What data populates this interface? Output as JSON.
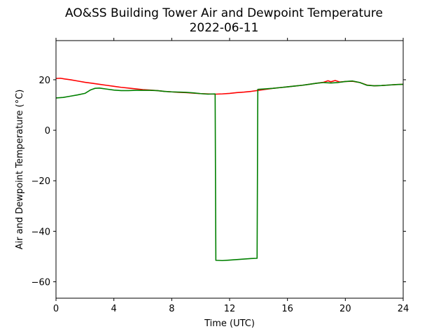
{
  "chart_data": {
    "type": "line",
    "title": "AO&SS Building Tower Air and Dewpoint Temperature",
    "subtitle": "2022-06-11",
    "xlabel": "Time (UTC)",
    "ylabel": "Air and Dewpoint Temperature (°C)",
    "xlim": [
      0,
      24
    ],
    "ylim": [
      -66.5,
      35.5
    ],
    "xticks": [
      0,
      4,
      8,
      12,
      16,
      20,
      24
    ],
    "yticks": [
      -60,
      -40,
      -20,
      0,
      20
    ],
    "grid": false,
    "series": [
      {
        "color": "#ff0000",
        "points": [
          [
            0,
            20.5
          ],
          [
            0.3,
            20.6
          ],
          [
            0.6,
            20.3
          ],
          [
            1,
            20.0
          ],
          [
            1.5,
            19.5
          ],
          [
            2,
            19.0
          ],
          [
            2.5,
            18.6
          ],
          [
            3,
            18.2
          ],
          [
            3.5,
            17.8
          ],
          [
            4,
            17.4
          ],
          [
            4.5,
            17.0
          ],
          [
            5,
            16.7
          ],
          [
            5.5,
            16.4
          ],
          [
            6,
            16.1
          ],
          [
            6.5,
            15.9
          ],
          [
            7,
            15.7
          ],
          [
            7.5,
            15.4
          ],
          [
            8,
            15.2
          ],
          [
            8.5,
            15.0
          ],
          [
            9,
            14.9
          ],
          [
            9.5,
            14.7
          ],
          [
            10,
            14.5
          ],
          [
            10.5,
            14.4
          ],
          [
            11,
            14.3
          ],
          [
            11.5,
            14.4
          ],
          [
            12,
            14.6
          ],
          [
            12.5,
            14.9
          ],
          [
            13,
            15.1
          ],
          [
            13.5,
            15.4
          ],
          [
            14,
            15.8
          ],
          [
            14.5,
            16.2
          ],
          [
            15,
            16.6
          ],
          [
            15.5,
            16.9
          ],
          [
            16,
            17.2
          ],
          [
            16.5,
            17.5
          ],
          [
            17,
            17.8
          ],
          [
            17.5,
            18.2
          ],
          [
            18,
            18.6
          ],
          [
            18.5,
            19.0
          ],
          [
            18.8,
            19.6
          ],
          [
            19,
            19.2
          ],
          [
            19.3,
            19.7
          ],
          [
            19.6,
            19.1
          ],
          [
            20,
            19.3
          ],
          [
            20.5,
            19.4
          ],
          [
            21,
            18.9
          ],
          [
            21.5,
            17.9
          ],
          [
            22,
            17.6
          ],
          [
            22.5,
            17.7
          ],
          [
            23,
            17.9
          ],
          [
            23.5,
            18.1
          ],
          [
            24,
            18.2
          ]
        ]
      },
      {
        "color": "#008000",
        "points": [
          [
            0,
            12.8
          ],
          [
            0.5,
            13.0
          ],
          [
            1,
            13.5
          ],
          [
            1.5,
            14.0
          ],
          [
            2,
            14.6
          ],
          [
            2.4,
            16.0
          ],
          [
            2.7,
            16.6
          ],
          [
            3,
            16.7
          ],
          [
            3.5,
            16.3
          ],
          [
            4,
            15.9
          ],
          [
            4.5,
            15.7
          ],
          [
            5,
            15.7
          ],
          [
            5.5,
            15.8
          ],
          [
            6,
            15.8
          ],
          [
            6.5,
            15.8
          ],
          [
            7,
            15.7
          ],
          [
            7.5,
            15.4
          ],
          [
            8,
            15.2
          ],
          [
            8.5,
            15.1
          ],
          [
            9,
            15.0
          ],
          [
            9.5,
            14.8
          ],
          [
            10,
            14.5
          ],
          [
            10.5,
            14.3
          ],
          [
            11,
            14.4
          ],
          [
            11.05,
            -51.5
          ],
          [
            11.5,
            -51.6
          ],
          [
            12,
            -51.4
          ],
          [
            12.5,
            -51.2
          ],
          [
            13,
            -51.0
          ],
          [
            13.5,
            -50.8
          ],
          [
            13.9,
            -50.7
          ],
          [
            13.95,
            16.2
          ],
          [
            14.5,
            16.4
          ],
          [
            15,
            16.6
          ],
          [
            15.5,
            16.9
          ],
          [
            16,
            17.2
          ],
          [
            16.5,
            17.5
          ],
          [
            17,
            17.8
          ],
          [
            17.5,
            18.2
          ],
          [
            18,
            18.6
          ],
          [
            18.5,
            18.9
          ],
          [
            19,
            18.7
          ],
          [
            19.5,
            18.9
          ],
          [
            20,
            19.3
          ],
          [
            20.5,
            19.5
          ],
          [
            21,
            18.9
          ],
          [
            21.5,
            17.8
          ],
          [
            22,
            17.6
          ],
          [
            22.5,
            17.7
          ],
          [
            23,
            17.9
          ],
          [
            23.5,
            18.1
          ],
          [
            24,
            18.2
          ]
        ]
      }
    ]
  }
}
